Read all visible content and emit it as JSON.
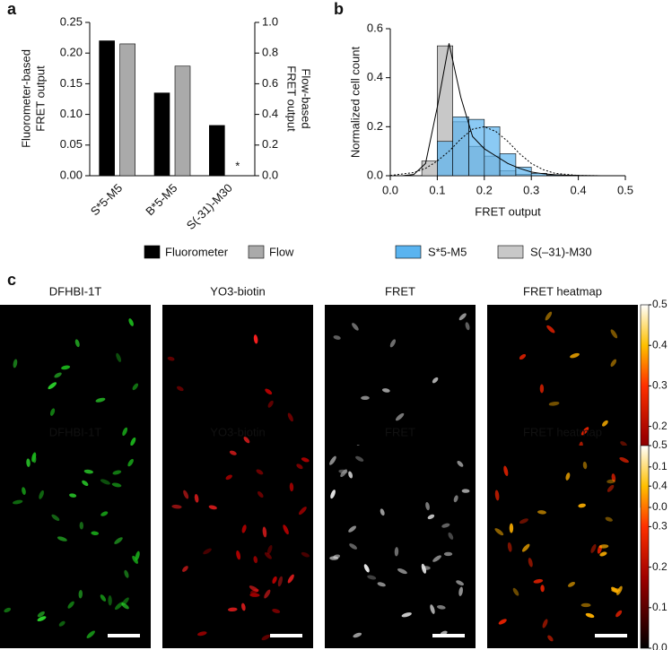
{
  "panel_labels": [
    "a",
    "b",
    "c"
  ],
  "chart_data": [
    {
      "type": "bar",
      "ylabel": [
        "Fluorometer-based",
        "FRET output"
      ],
      "y2label": [
        "Flow-based",
        "FRET output"
      ],
      "categories": [
        "S*5-M5",
        "B*5-M5",
        "S(-31)-M30"
      ],
      "series": [
        {
          "name": "Fluorometer",
          "color": "#000000",
          "values": [
            0.22,
            0.135,
            0.082
          ]
        },
        {
          "name": "Flow",
          "color": "#aaaaaa",
          "axis": "y2",
          "values": [
            0.86,
            0.715,
            null
          ]
        }
      ],
      "annotations": [
        {
          "text": "*",
          "category": 2
        }
      ],
      "ylim": [
        0,
        0.25
      ],
      "yticks": [
        {
          "value": 0,
          "label": "0.00"
        },
        0.05,
        {
          "value": 0.1,
          "label": "0.10"
        },
        0.15,
        {
          "value": 0.2,
          "label": "0.20"
        },
        0.25
      ],
      "y2lim": [
        0,
        1
      ],
      "y2ticks": [
        {
          "value": 0,
          "label": "0.0"
        },
        0.2,
        0.4,
        0.6,
        0.8,
        {
          "value": 1,
          "label": "1.0"
        }
      ]
    },
    {
      "type": "histogram",
      "xlabel": "FRET output",
      "ylabel": "Normalized cell count",
      "bins": [
        0.067,
        0.1,
        0.133,
        0.167,
        0.2,
        0.233,
        0.267,
        0.3,
        0.333,
        0.367,
        0.4,
        0.433,
        0.467,
        0.5
      ],
      "series": [
        {
          "name": "S*5-M5",
          "color": "#5ab4f0",
          "values": [
            0,
            0.14,
            0.24,
            0.23,
            0.2,
            0.09,
            0.035,
            0.01,
            0.003,
            0.002,
            0,
            0,
            0
          ]
        },
        {
          "name": "S(–31)-M30",
          "color": "#c8c8c8",
          "values": [
            0.06,
            0.53,
            0.22,
            0.12,
            0.08,
            0.02,
            0.005,
            0,
            0,
            0,
            0,
            0,
            0
          ]
        }
      ],
      "fit_lines": [
        {
          "style": "solid",
          "color": "#000000",
          "x": [
            0,
            0.025,
            0.05,
            0.075,
            0.1,
            0.125,
            0.15,
            0.175,
            0.2,
            0.225,
            0.25,
            0.275,
            0.3,
            0.325,
            0.35,
            0.375,
            0.4,
            0.45,
            0.5
          ],
          "values": [
            0,
            0,
            0.005,
            0.05,
            0.28,
            0.54,
            0.32,
            0.16,
            0.11,
            0.08,
            0.05,
            0.03,
            0.015,
            0.008,
            0.004,
            0.002,
            0.001,
            0,
            0
          ]
        },
        {
          "style": "dotted",
          "color": "#000000",
          "x": [
            0,
            0.05,
            0.075,
            0.1,
            0.125,
            0.15,
            0.175,
            0.2,
            0.225,
            0.25,
            0.275,
            0.3,
            0.325,
            0.35,
            0.4,
            0.45,
            0.5
          ],
          "values": [
            0.001,
            0.013,
            0.03,
            0.06,
            0.1,
            0.15,
            0.19,
            0.2,
            0.18,
            0.14,
            0.09,
            0.05,
            0.025,
            0.01,
            0.001,
            0,
            0
          ]
        }
      ],
      "xlim": [
        0,
        0.5
      ],
      "xticks": [
        {
          "value": 0,
          "label": "0.0"
        },
        0.1,
        0.2,
        0.3,
        0.4,
        0.5
      ],
      "ylim": [
        0,
        0.6
      ],
      "yticks": [
        {
          "value": 0,
          "label": "0.0"
        },
        0.2,
        0.4,
        0.6
      ]
    }
  ],
  "panel_c": {
    "rows": [
      {
        "titles": [
          "DFHBI-1T",
          "YO3-biotin",
          "FRET",
          "FRET heatmap"
        ]
      },
      {
        "titles": [
          "DFHBI-1T",
          "YO3-biotin",
          "FRET",
          "FRET heatmap"
        ]
      }
    ],
    "colorbar_lim": [
      0,
      0.5
    ],
    "colorbar_ticks": [
      {
        "value": 0,
        "label": "0.0"
      },
      0.1,
      0.2,
      0.3,
      0.4,
      0.5
    ]
  }
}
